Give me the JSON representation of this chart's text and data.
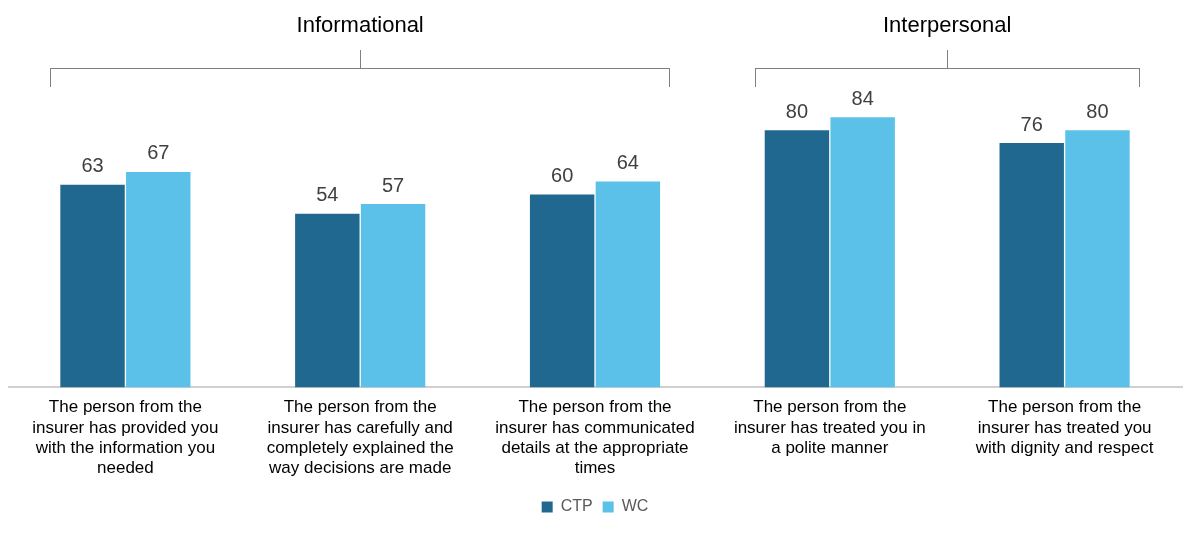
{
  "chart_data": {
    "type": "bar",
    "categories": [
      "The person from the insurer has provided you with the information you needed",
      "The person from the insurer has carefully and completely explained the way decisions are made",
      "The person from the insurer has communicated details at the appropriate times",
      "The person from the insurer has treated you in a polite manner",
      "The person from the insurer has treated you with dignity and respect"
    ],
    "series": [
      {
        "name": "CTP",
        "color": "#216890",
        "values": [
          63,
          54,
          60,
          80,
          76
        ]
      },
      {
        "name": "WC",
        "color": "#5bc1e8",
        "values": [
          67,
          57,
          64,
          84,
          80
        ]
      }
    ],
    "tick_labels": "x",
    "grid": false,
    "legend": "bottom",
    "data_labels": true,
    "annotations": [
      "Informational",
      "Interpersonal"
    ]
  }
}
